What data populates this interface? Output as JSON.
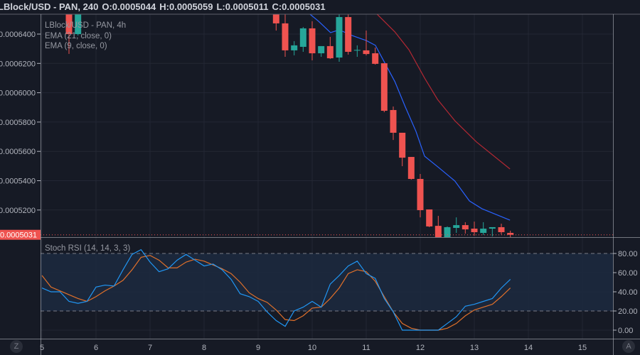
{
  "header": {
    "symbol": "LBlock/USD - PAN, 240",
    "open": "O:0.0005044",
    "high": "H:0.0005059",
    "low": "L:0.0005011",
    "close": "C:0.0005031"
  },
  "legend": {
    "title": "LBlock/USD - PAN, 4h",
    "ema21": "EMA (21, close, 0)",
    "ema9": "EMA (9, close, 0)"
  },
  "rsi_title": "Stoch RSI (14, 14, 3, 3)",
  "bottom_left_button": "Z",
  "bottom_right_button": "A",
  "colors": {
    "background": "#161a25",
    "up": "#26a69a",
    "down": "#ef5350",
    "ema9": "#2962ff",
    "ema21": "#b22833",
    "stoch_k": "#2196f3",
    "stoch_d": "#e0702a",
    "band": "#1c2a40"
  },
  "chart_data": [
    {
      "type": "candlestick",
      "price_ticks": [
        "0.0006400",
        "0.0006200",
        "0.0006000",
        "0.0005800",
        "0.0005600",
        "0.0005400",
        "0.0005200"
      ],
      "price_tick_values": [
        0.00064,
        0.00062,
        0.0006,
        0.00058,
        0.00056,
        0.00054,
        0.00052
      ],
      "current_price": 0.0005031,
      "current_price_label": "0.0005031",
      "x_ticks": [
        "5",
        "6",
        "7",
        "8",
        "9",
        "10",
        "11",
        "12",
        "13",
        "14",
        "15"
      ],
      "candles": [
        [
          5.5,
          0.000656,
          0.000657,
          0.0006265,
          0.00064
        ],
        [
          5.667,
          0.00064,
          0.000658,
          0.000639,
          0.000656
        ],
        [
          9.333,
          0.000654,
          0.000656,
          0.0006424,
          0.0006473
        ],
        [
          9.5,
          0.0006473,
          0.000656,
          0.0006245,
          0.0006289
        ],
        [
          9.667,
          0.0006289,
          0.0006352,
          0.0006255,
          0.0006323
        ],
        [
          9.833,
          0.0006313,
          0.0006448,
          0.0006279,
          0.0006439
        ],
        [
          10.0,
          0.0006439,
          0.0006487,
          0.0006221,
          0.0006269
        ],
        [
          10.167,
          0.0006269,
          0.0006318,
          0.0006245,
          0.0006318
        ],
        [
          10.333,
          0.0006318,
          0.0006381,
          0.000623,
          0.0006235
        ],
        [
          10.5,
          0.000624,
          0.0006536,
          0.0006211,
          0.0006516
        ],
        [
          10.667,
          0.0006516,
          0.0006536,
          0.000626,
          0.0006279
        ],
        [
          10.833,
          0.0006287,
          0.0006323,
          0.0006245,
          0.0006292
        ],
        [
          11.0,
          0.0006289,
          0.0006424,
          0.0006255,
          0.0006264
        ],
        [
          11.167,
          0.0006269,
          0.0006308,
          0.0006192,
          0.0006197
        ],
        [
          11.333,
          0.0006201,
          0.0006201,
          0.0005867,
          0.0005877
        ],
        [
          11.5,
          0.0005882,
          0.0005906,
          0.0005678,
          0.0005727
        ],
        [
          11.667,
          0.0005727,
          0.0005727,
          0.0005499,
          0.0005557
        ],
        [
          11.833,
          0.0005562,
          0.0005562,
          0.0005407,
          0.0005412
        ],
        [
          12.0,
          0.0005412,
          0.0005446,
          0.000515,
          0.0005199
        ],
        [
          12.167,
          0.0005204,
          0.0005204,
          0.0005083,
          0.0005088
        ],
        [
          12.333,
          0.0005092,
          0.000516,
          0.000498,
          0.000499
        ],
        [
          12.5,
          0.000499,
          0.0005088,
          0.000498,
          0.0005083
        ],
        [
          12.667,
          0.0005078,
          0.000515,
          0.0005044,
          0.0005097
        ],
        [
          12.833,
          0.0005097,
          0.0005117,
          0.0005039,
          0.0005068
        ],
        [
          13.0,
          0.0005073,
          0.0005121,
          0.0005025,
          0.0005049
        ],
        [
          13.167,
          0.0005044,
          0.0005117,
          0.000503,
          0.0005073
        ],
        [
          13.333,
          0.0005073,
          0.0005083,
          0.000502,
          0.0005083
        ],
        [
          13.5,
          0.0005083,
          0.0005107,
          0.0005034,
          0.0005049
        ],
        [
          13.667,
          0.0005044,
          0.0005059,
          0.0005011,
          0.0005031
        ]
      ],
      "ema9": [
        [
          9.88,
          0.000656
        ],
        [
          10.12,
          0.0006487
        ],
        [
          10.34,
          0.000641
        ],
        [
          10.5,
          0.0006429
        ],
        [
          10.74,
          0.000639
        ],
        [
          11.0,
          0.0006356
        ],
        [
          11.17,
          0.0006323
        ],
        [
          11.34,
          0.0006206
        ],
        [
          11.53,
          0.0006076
        ],
        [
          11.72,
          0.0005906
        ],
        [
          11.92,
          0.0005737
        ],
        [
          12.08,
          0.0005567
        ],
        [
          12.34,
          0.000549
        ],
        [
          12.64,
          0.0005398
        ],
        [
          12.91,
          0.0005262
        ],
        [
          13.14,
          0.0005209
        ],
        [
          13.66,
          0.0005131
        ]
      ],
      "ema21": [
        [
          11.2,
          0.0006536
        ],
        [
          11.53,
          0.0006415
        ],
        [
          11.79,
          0.0006293
        ],
        [
          12.08,
          0.00061
        ],
        [
          12.32,
          0.0005954
        ],
        [
          12.64,
          0.0005809
        ],
        [
          13.04,
          0.0005664
        ],
        [
          13.66,
          0.000548
        ]
      ]
    },
    {
      "type": "line",
      "name": "Stoch RSI (14, 14, 3, 3)",
      "y_ticks": [
        "80.00",
        "60.00",
        "40.00",
        "20.00",
        "0.00"
      ],
      "y_tick_values": [
        80,
        60,
        40,
        20,
        0
      ],
      "band": [
        20,
        80
      ],
      "last_time": 13.667,
      "k": [
        44,
        40,
        40,
        30,
        28,
        30,
        45,
        47,
        46,
        63,
        79,
        84,
        71,
        61,
        64,
        73,
        79,
        73,
        67,
        69,
        63,
        53,
        38,
        35,
        30,
        19,
        10,
        4,
        20,
        24,
        30,
        24,
        48,
        57,
        67,
        72,
        59,
        54,
        33,
        19,
        0,
        0,
        0,
        0,
        0,
        7,
        14,
        25,
        27,
        30,
        33,
        44,
        53
      ],
      "d": [
        57,
        45,
        41,
        37,
        33,
        30,
        35,
        41,
        46,
        52,
        63,
        76,
        78,
        73,
        65,
        65,
        71,
        74,
        72,
        68,
        64,
        59,
        50,
        39,
        33,
        29,
        21,
        11,
        10,
        15,
        23,
        24,
        33,
        44,
        59,
        63,
        61,
        51,
        35,
        19,
        7,
        2,
        0,
        0,
        0,
        2,
        7,
        15,
        21,
        24,
        27,
        35,
        44
      ]
    }
  ]
}
